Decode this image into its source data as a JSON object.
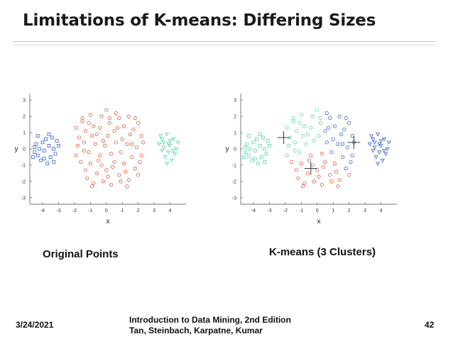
{
  "slide": {
    "title": "Limitations of K-means: Differing Sizes",
    "left_caption": "Original Points",
    "right_caption": "K-means (3 Clusters)",
    "footer_date": "3/24/2021",
    "footer_book_line1": "Introduction to Data Mining, 2nd Edition",
    "footer_book_line2": "Tan, Steinbach, Karpatne, Kumar",
    "page_number": "42"
  },
  "colors": {
    "red": "#e05a3a",
    "blue": "#3a64d8",
    "green": "#5ad8a8",
    "axis": "#444444"
  },
  "chart_data": [
    {
      "type": "scatter",
      "name": "original",
      "title": "",
      "xlabel": "x",
      "ylabel": "y",
      "xlim": [
        -4.8,
        5.0
      ],
      "ylim": [
        -3.4,
        3.4
      ],
      "xticks": [
        -4,
        -3,
        -2,
        -1,
        0,
        1,
        2,
        3,
        4
      ],
      "yticks": [
        -3,
        -2,
        -1,
        0,
        1,
        2,
        3
      ],
      "series": [
        {
          "name": "small-left",
          "color": "blue",
          "marker": "square",
          "points": [
            [
              -4.5,
              -0.2
            ],
            [
              -4.4,
              0.3
            ],
            [
              -4.3,
              -0.4
            ],
            [
              -4.2,
              0.0
            ],
            [
              -4.1,
              -0.7
            ],
            [
              -4.0,
              0.4
            ],
            [
              -3.9,
              -0.1
            ],
            [
              -3.8,
              0.6
            ],
            [
              -3.7,
              -0.9
            ],
            [
              -3.6,
              0.2
            ],
            [
              -3.5,
              -0.5
            ],
            [
              -3.4,
              0.7
            ],
            [
              -3.3,
              0.0
            ],
            [
              -3.2,
              -0.3
            ],
            [
              -3.1,
              0.5
            ],
            [
              -4.5,
              0.1
            ],
            [
              -4.3,
              0.8
            ],
            [
              -3.9,
              -0.6
            ],
            [
              -3.6,
              0.9
            ],
            [
              -3.3,
              -0.8
            ],
            [
              -4.6,
              -0.5
            ],
            [
              -3.0,
              0.2
            ]
          ]
        },
        {
          "name": "large-center",
          "color": "red",
          "marker": "circle",
          "points": [
            [
              -1.9,
              1.3
            ],
            [
              -1.7,
              0.7
            ],
            [
              -1.5,
              1.7
            ],
            [
              -1.3,
              1.1
            ],
            [
              -1.0,
              2.1
            ],
            [
              -0.8,
              1.4
            ],
            [
              -0.6,
              0.9
            ],
            [
              -0.3,
              2.0
            ],
            [
              0.0,
              2.4
            ],
            [
              0.2,
              1.6
            ],
            [
              0.5,
              1.1
            ],
            [
              0.8,
              1.9
            ],
            [
              1.1,
              1.4
            ],
            [
              1.4,
              2.0
            ],
            [
              1.7,
              1.2
            ],
            [
              2.0,
              1.6
            ],
            [
              2.2,
              0.8
            ],
            [
              -1.8,
              0.2
            ],
            [
              -1.4,
              0.4
            ],
            [
              -1.1,
              -0.2
            ],
            [
              -0.7,
              0.3
            ],
            [
              -0.4,
              -0.4
            ],
            [
              -0.1,
              0.2
            ],
            [
              0.3,
              -0.3
            ],
            [
              0.6,
              0.4
            ],
            [
              0.9,
              -0.2
            ],
            [
              1.3,
              0.3
            ],
            [
              1.6,
              -0.5
            ],
            [
              1.9,
              0.1
            ],
            [
              2.2,
              -0.4
            ],
            [
              -1.6,
              -0.8
            ],
            [
              -1.3,
              -1.3
            ],
            [
              -1.0,
              -0.9
            ],
            [
              -0.6,
              -1.5
            ],
            [
              -0.3,
              -1.0
            ],
            [
              0.1,
              -1.7
            ],
            [
              0.4,
              -1.1
            ],
            [
              0.8,
              -1.6
            ],
            [
              1.1,
              -0.9
            ],
            [
              1.4,
              -1.9
            ],
            [
              1.8,
              -1.2
            ],
            [
              2.1,
              -0.8
            ],
            [
              -1.2,
              -1.8
            ],
            [
              -0.8,
              -2.1
            ],
            [
              -0.2,
              -2.0
            ],
            [
              0.3,
              -2.2
            ],
            [
              0.9,
              -2.0
            ],
            [
              1.3,
              -2.3
            ],
            [
              -1.5,
              1.9
            ],
            [
              -0.4,
              1.3
            ],
            [
              0.6,
              2.2
            ],
            [
              1.5,
              0.9
            ],
            [
              -0.9,
              0.8
            ],
            [
              0.1,
              0.8
            ],
            [
              1.0,
              0.6
            ],
            [
              -1.9,
              -0.4
            ],
            [
              2.0,
              -1.6
            ],
            [
              -0.5,
              -0.7
            ],
            [
              0.5,
              -0.8
            ],
            [
              1.2,
              -1.4
            ],
            [
              -1.4,
              -0.1
            ],
            [
              0.2,
              1.9
            ],
            [
              1.8,
              1.9
            ],
            [
              -1.1,
              1.6
            ],
            [
              -0.2,
              0.5
            ],
            [
              0.7,
              1.3
            ],
            [
              1.6,
              0.3
            ],
            [
              -0.9,
              -2.3
            ],
            [
              0.0,
              -1.3
            ],
            [
              2.3,
              0.4
            ]
          ]
        },
        {
          "name": "medium-right",
          "color": "green",
          "marker": "triangle",
          "points": [
            [
              3.4,
              0.8
            ],
            [
              3.6,
              0.4
            ],
            [
              3.8,
              0.9
            ],
            [
              4.0,
              0.2
            ],
            [
              4.2,
              0.6
            ],
            [
              4.4,
              0.0
            ],
            [
              3.5,
              -0.1
            ],
            [
              3.7,
              -0.5
            ],
            [
              3.9,
              -0.2
            ],
            [
              4.1,
              -0.7
            ],
            [
              4.3,
              -0.3
            ],
            [
              3.6,
              0.1
            ],
            [
              3.3,
              0.3
            ],
            [
              3.8,
              -0.9
            ],
            [
              4.5,
              0.4
            ],
            [
              3.5,
              0.6
            ],
            [
              4.0,
              0.5
            ],
            [
              3.9,
              0.3
            ],
            [
              4.2,
              -0.1
            ]
          ]
        }
      ]
    },
    {
      "type": "scatter",
      "name": "kmeans",
      "title": "",
      "xlabel": "x",
      "ylabel": "y",
      "xlim": [
        -4.8,
        5.0
      ],
      "ylim": [
        -3.4,
        3.4
      ],
      "xticks": [
        -4,
        -3,
        -2,
        -1,
        0,
        1,
        2,
        3,
        4
      ],
      "yticks": [
        -3,
        -2,
        -1,
        0,
        1,
        2,
        3
      ],
      "series": [
        {
          "name": "cluster-green",
          "color": "green",
          "marker": "square",
          "points": [
            [
              -4.5,
              -0.2
            ],
            [
              -4.4,
              0.3
            ],
            [
              -4.3,
              -0.4
            ],
            [
              -4.2,
              0.0
            ],
            [
              -4.1,
              -0.7
            ],
            [
              -4.0,
              0.4
            ],
            [
              -3.9,
              -0.1
            ],
            [
              -3.8,
              0.6
            ],
            [
              -3.7,
              -0.9
            ],
            [
              -3.6,
              0.2
            ],
            [
              -3.5,
              -0.5
            ],
            [
              -3.4,
              0.7
            ],
            [
              -3.3,
              0.0
            ],
            [
              -3.2,
              -0.3
            ],
            [
              -3.1,
              0.5
            ],
            [
              -4.5,
              0.1
            ],
            [
              -4.3,
              0.8
            ],
            [
              -3.9,
              -0.6
            ],
            [
              -3.6,
              0.9
            ],
            [
              -3.3,
              -0.8
            ],
            [
              -4.6,
              -0.5
            ],
            [
              -3.0,
              0.2
            ]
          ]
        },
        {
          "name": "cluster-green-circles",
          "color": "green",
          "marker": "circle",
          "points": [
            [
              -1.9,
              1.3
            ],
            [
              -1.7,
              0.7
            ],
            [
              -1.5,
              1.7
            ],
            [
              -1.3,
              1.1
            ],
            [
              -1.0,
              2.1
            ],
            [
              -0.8,
              1.4
            ],
            [
              -0.6,
              0.9
            ],
            [
              -0.3,
              2.0
            ],
            [
              0.0,
              2.4
            ],
            [
              0.2,
              1.6
            ],
            [
              -1.8,
              0.2
            ],
            [
              -1.4,
              0.4
            ],
            [
              -1.1,
              -0.2
            ],
            [
              -0.7,
              0.3
            ],
            [
              -1.5,
              1.9
            ],
            [
              -0.4,
              1.3
            ],
            [
              -0.9,
              0.8
            ],
            [
              0.1,
              0.8
            ],
            [
              -1.4,
              -0.1
            ],
            [
              0.2,
              1.9
            ],
            [
              -1.1,
              1.6
            ],
            [
              -0.2,
              0.5
            ],
            [
              -1.9,
              -0.4
            ]
          ]
        },
        {
          "name": "cluster-red-circles",
          "color": "red",
          "marker": "circle",
          "points": [
            [
              -1.6,
              -0.8
            ],
            [
              -1.3,
              -1.3
            ],
            [
              -1.0,
              -0.9
            ],
            [
              -0.6,
              -1.5
            ],
            [
              -0.3,
              -1.0
            ],
            [
              0.1,
              -1.7
            ],
            [
              0.4,
              -1.1
            ],
            [
              0.8,
              -1.6
            ],
            [
              1.1,
              -0.9
            ],
            [
              1.4,
              -1.9
            ],
            [
              -1.2,
              -1.8
            ],
            [
              -0.8,
              -2.1
            ],
            [
              -0.2,
              -2.0
            ],
            [
              0.3,
              -2.2
            ],
            [
              0.9,
              -2.0
            ],
            [
              1.3,
              -2.3
            ],
            [
              -0.5,
              -0.7
            ],
            [
              0.5,
              -0.8
            ],
            [
              1.2,
              -1.4
            ],
            [
              -0.9,
              -2.3
            ],
            [
              0.0,
              -1.3
            ],
            [
              2.0,
              -1.6
            ],
            [
              -0.4,
              -0.4
            ],
            [
              0.3,
              -0.3
            ]
          ]
        },
        {
          "name": "cluster-blue-circles",
          "color": "blue",
          "marker": "circle",
          "points": [
            [
              0.5,
              1.1
            ],
            [
              0.8,
              1.9
            ],
            [
              1.1,
              1.4
            ],
            [
              1.4,
              2.0
            ],
            [
              1.7,
              1.2
            ],
            [
              2.0,
              1.6
            ],
            [
              2.2,
              0.8
            ],
            [
              0.6,
              0.4
            ],
            [
              0.9,
              -0.2
            ],
            [
              1.3,
              0.3
            ],
            [
              1.6,
              -0.5
            ],
            [
              1.9,
              0.1
            ],
            [
              2.2,
              -0.4
            ],
            [
              2.1,
              -0.8
            ],
            [
              1.5,
              0.9
            ],
            [
              1.0,
              0.6
            ],
            [
              0.6,
              2.2
            ],
            [
              0.7,
              1.3
            ],
            [
              1.6,
              0.3
            ],
            [
              1.8,
              1.9
            ],
            [
              2.3,
              0.4
            ],
            [
              1.8,
              -1.2
            ]
          ]
        },
        {
          "name": "cluster-blue-triangles",
          "color": "blue",
          "marker": "triangle",
          "points": [
            [
              3.4,
              0.8
            ],
            [
              3.6,
              0.4
            ],
            [
              3.8,
              0.9
            ],
            [
              4.0,
              0.2
            ],
            [
              4.2,
              0.6
            ],
            [
              4.4,
              0.0
            ],
            [
              3.5,
              -0.1
            ],
            [
              3.7,
              -0.5
            ],
            [
              3.9,
              -0.2
            ],
            [
              4.1,
              -0.7
            ],
            [
              4.3,
              -0.3
            ],
            [
              3.6,
              0.1
            ],
            [
              3.3,
              0.3
            ],
            [
              3.8,
              -0.9
            ],
            [
              4.5,
              0.4
            ],
            [
              3.5,
              0.6
            ],
            [
              4.0,
              0.5
            ],
            [
              3.9,
              0.3
            ],
            [
              4.2,
              -0.1
            ]
          ]
        }
      ],
      "centroids": [
        [
          -2.1,
          0.7
        ],
        [
          -0.4,
          -1.2
        ],
        [
          2.3,
          0.4
        ]
      ]
    }
  ]
}
